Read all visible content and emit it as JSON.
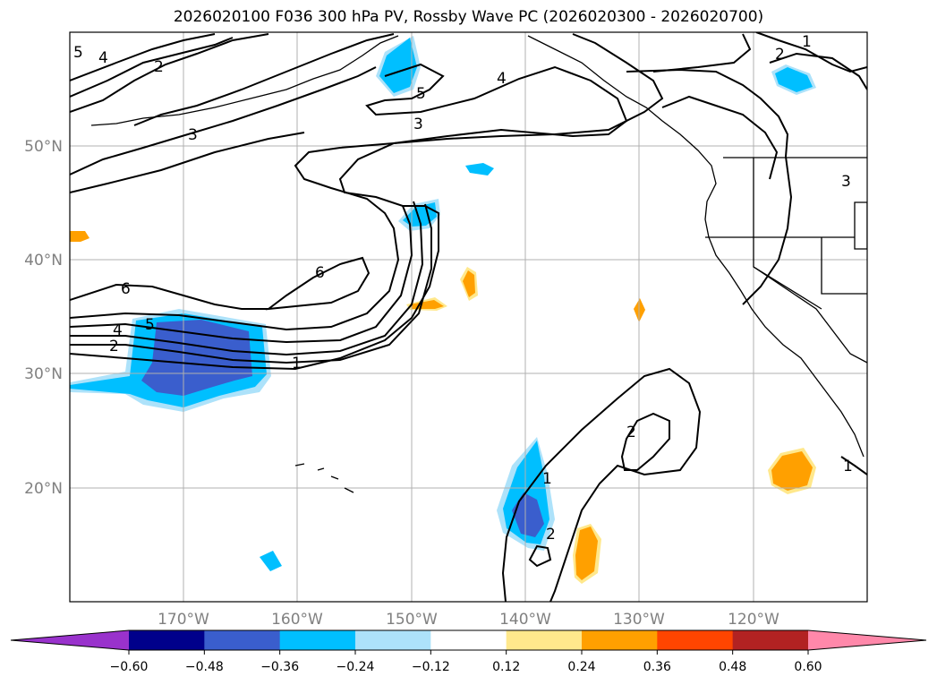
{
  "title": "2026020100 F036 300 hPa PV, Rossby Wave PC (2026020300 - 2026020700)",
  "lat_labels": [
    "50°N",
    "40°N",
    "30°N",
    "20°N"
  ],
  "lon_labels": [
    "170°W",
    "160°W",
    "150°W",
    "140°W",
    "130°W",
    "120°W"
  ],
  "colorbar": {
    "ticks": [
      "−0.60",
      "−0.48",
      "−0.36",
      "−0.24",
      "−0.12",
      "0.12",
      "0.24",
      "0.36",
      "0.48",
      "0.60"
    ],
    "colors": [
      "#9932CC",
      "#00008B",
      "#3A5ECD",
      "#00BFFF",
      "#ADE2FA",
      "#FFFFFF",
      "#FFE88C",
      "#FFA000",
      "#FF4500",
      "#B22222",
      "#FF88AA"
    ]
  },
  "contour_labels": [
    "5",
    "4",
    "2",
    "3",
    "5",
    "3",
    "4",
    "2",
    "1",
    "6",
    "6",
    "4",
    "5",
    "2",
    "1",
    "2",
    "1",
    "2",
    "3",
    "1"
  ],
  "fill_colors": {
    "light_blue": "#ADE2FA",
    "cyan": "#00BFFF",
    "royal_blue": "#3A5ECD",
    "yellow": "#FFE88C",
    "orange": "#FFA000"
  }
}
